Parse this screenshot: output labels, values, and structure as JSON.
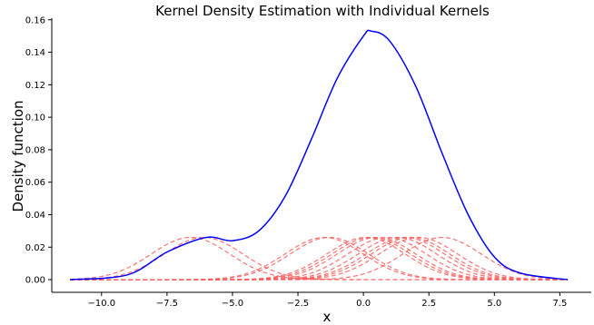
{
  "chart_data": {
    "type": "line",
    "title": "Kernel Density Estimation with Individual Kernels",
    "xlabel": "x",
    "ylabel": "Density function",
    "xlim": [
      -11.9,
      8.7
    ],
    "ylim": [
      -0.0078,
      0.161
    ],
    "xticks": [
      -10.0,
      -7.5,
      -5.0,
      -2.5,
      0.0,
      2.5,
      5.0,
      7.5
    ],
    "xtick_labels": [
      "−10.0",
      "−7.5",
      "−5.0",
      "−2.5",
      "0.0",
      "2.5",
      "5.0",
      "7.5"
    ],
    "yticks": [
      0.0,
      0.02,
      0.04,
      0.06,
      0.08,
      0.1,
      0.12,
      0.14,
      0.16
    ],
    "ytick_labels": [
      "0.00",
      "0.02",
      "0.04",
      "0.06",
      "0.08",
      "0.10",
      "0.12",
      "0.14",
      "0.16"
    ],
    "x_range": [
      -11.2,
      7.8
    ],
    "kernel_bandwidth": 1.5,
    "kernel_peak": 0.026,
    "kernel_centers": [
      -6.1,
      -6.6,
      -1.5,
      -1.3,
      0.1,
      0.3,
      0.5,
      0.9,
      1.3,
      1.6,
      1.8,
      2.1,
      3.0
    ],
    "density_points": [
      {
        "x": -11.2,
        "y": 0.0
      },
      {
        "x": -9.0,
        "y": 0.003
      },
      {
        "x": -7.5,
        "y": 0.017
      },
      {
        "x": -6.0,
        "y": 0.026
      },
      {
        "x": -5.0,
        "y": 0.024
      },
      {
        "x": -4.0,
        "y": 0.03
      },
      {
        "x": -3.0,
        "y": 0.051
      },
      {
        "x": -2.0,
        "y": 0.086
      },
      {
        "x": -1.0,
        "y": 0.124
      },
      {
        "x": 0.0,
        "y": 0.15
      },
      {
        "x": 0.3,
        "y": 0.153
      },
      {
        "x": 1.0,
        "y": 0.147
      },
      {
        "x": 2.0,
        "y": 0.119
      },
      {
        "x": 3.0,
        "y": 0.078
      },
      {
        "x": 4.0,
        "y": 0.04
      },
      {
        "x": 5.0,
        "y": 0.014
      },
      {
        "x": 6.0,
        "y": 0.004
      },
      {
        "x": 7.8,
        "y": 0.0
      }
    ],
    "colors": {
      "density": "#0000ff",
      "kernel": "#ff5a5a"
    },
    "grid": false
  }
}
